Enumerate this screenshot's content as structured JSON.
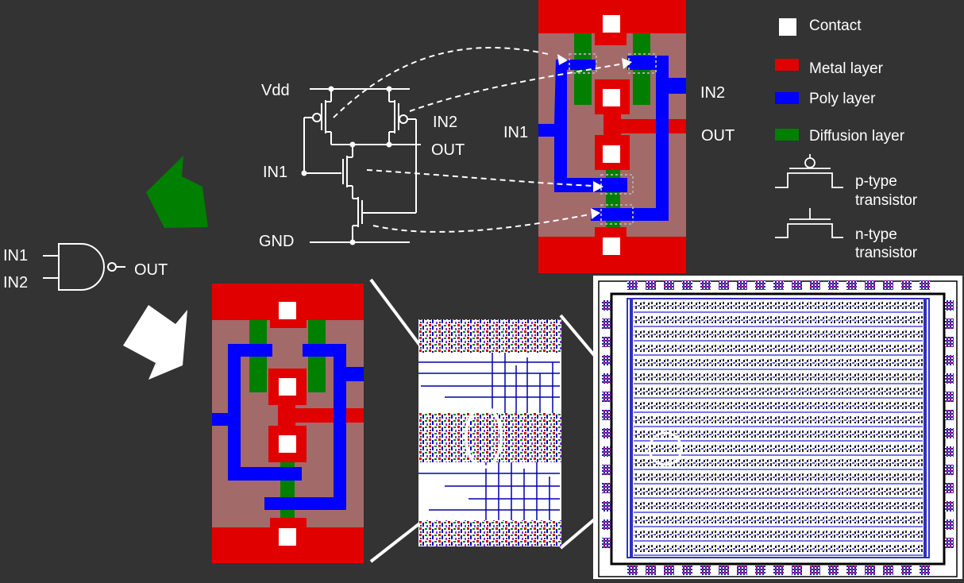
{
  "gate": {
    "input1": "IN1",
    "input2": "IN2",
    "output": "OUT"
  },
  "schematic": {
    "vdd": "Vdd",
    "gnd": "GND",
    "in1": "IN1",
    "in2": "IN2",
    "out": "OUT"
  },
  "layout_labels": {
    "in1": "IN1",
    "in2": "IN2",
    "out": "OUT"
  },
  "legend": {
    "contact": "Contact",
    "metal": "Metal layer",
    "poly": "Poly layer",
    "diffusion": "Diffusion layer",
    "ptype_line1": "p-type",
    "ptype_line2": "transistor",
    "ntype_line1": "n-type",
    "ntype_line2": "transistor"
  },
  "colors": {
    "background": "#333333",
    "metal": "#e00000",
    "poly": "#0000ff",
    "diffusion": "#007f00",
    "substrate": "#a36a6a",
    "contact": "#ffffff",
    "arrow_green": "#007f00",
    "arrow_white": "#ffffff"
  }
}
